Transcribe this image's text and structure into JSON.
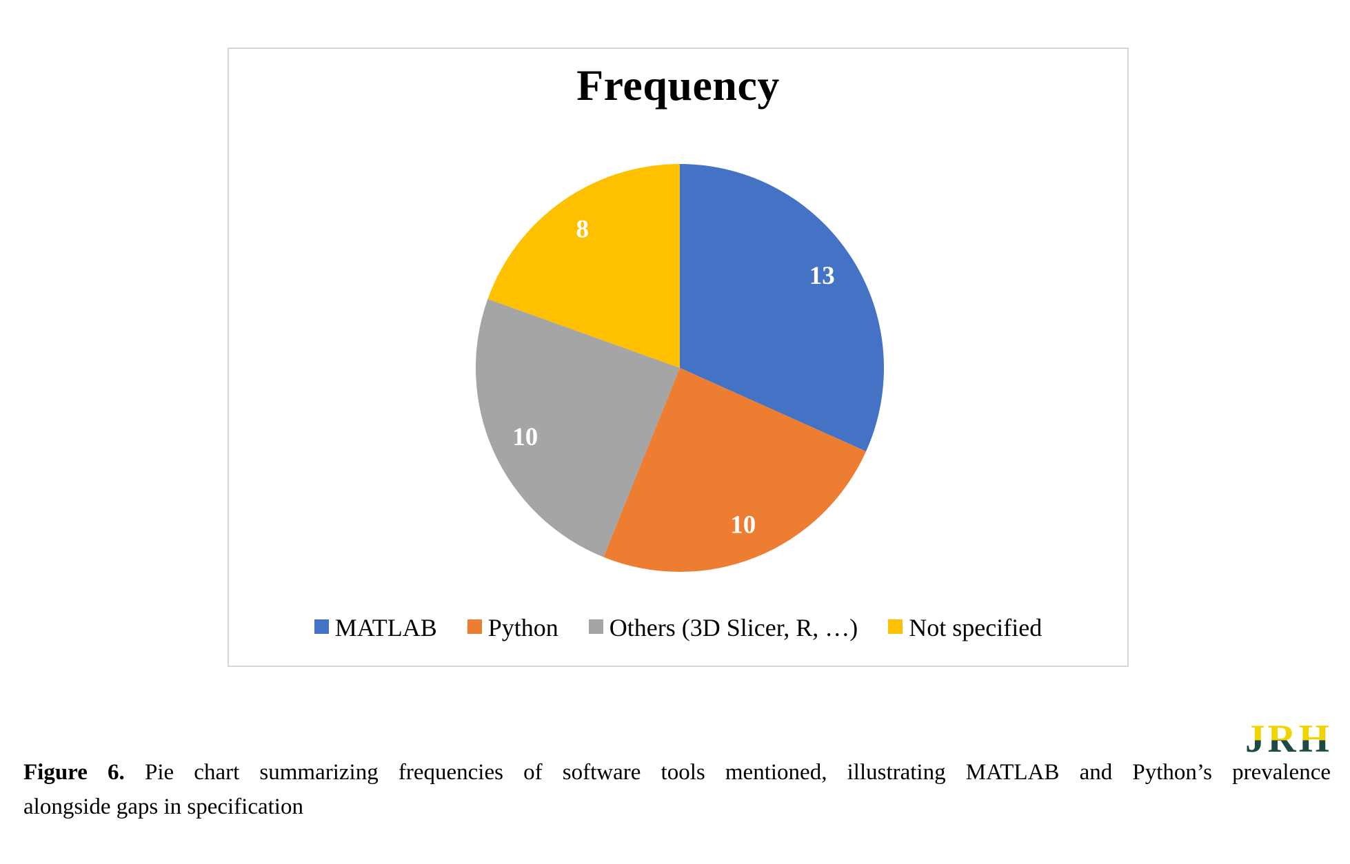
{
  "page": {
    "background": "#FFFFFF",
    "frame_border_color": "#D6D6D6"
  },
  "chart_data": {
    "type": "pie",
    "title": "Frequency",
    "categories": [
      "MATLAB",
      "Python",
      "Others (3D Slicer, R, …)",
      "Not specified"
    ],
    "values": [
      13,
      10,
      10,
      8
    ],
    "total": 41,
    "slice_colors": [
      "#4472C4",
      "#ED7D31",
      "#A5A5A5",
      "#FFC000"
    ],
    "data_labels": [
      "13",
      "10",
      "10",
      "8"
    ],
    "data_label_color": "#FFFFFF",
    "start_angle": 0,
    "direction": "clockwise",
    "legend_position": "bottom",
    "grid": "off"
  },
  "caption": {
    "label": "Figure 6.",
    "line1": "Pie chart summarizing frequencies of software tools mentioned, illustrating MATLAB and Python’s prevalence",
    "line2": "alongside gaps in specification"
  },
  "logo": {
    "text": "JRH",
    "top_color": "#EFD400",
    "bottom_color": "#1C4A45"
  }
}
